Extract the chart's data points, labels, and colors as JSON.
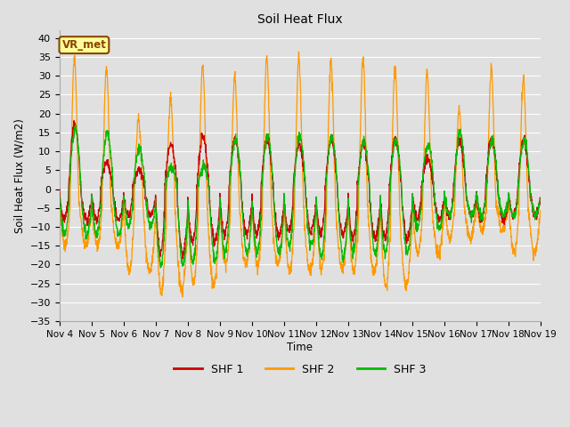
{
  "title": "Soil Heat Flux",
  "ylabel": "Soil Heat Flux (W/m2)",
  "xlabel": "Time",
  "ylim": [
    -35,
    42
  ],
  "yticks": [
    -35,
    -30,
    -25,
    -20,
    -15,
    -10,
    -5,
    0,
    5,
    10,
    15,
    20,
    25,
    30,
    35,
    40
  ],
  "colors": {
    "SHF 1": "#cc0000",
    "SHF 2": "#ff9900",
    "SHF 3": "#00bb00"
  },
  "legend_label": "VR_met",
  "legend_box_color": "#ffff99",
  "legend_box_edge": "#884400",
  "background_color": "#e0e0e0",
  "plot_bg_color": "#e0e0e0",
  "grid_color": "#ffffff",
  "x_tick_labels": [
    "Nov 4",
    "Nov 5",
    "Nov 6",
    "Nov 7",
    "Nov 8",
    "Nov 9",
    "Nov 10",
    "Nov 11",
    "Nov 12",
    "Nov 13",
    "Nov 14",
    "Nov 15",
    "Nov 16",
    "Nov 17",
    "Nov 18",
    "Nov 19"
  ],
  "n_days": 15,
  "points_per_day": 144,
  "day_amp_shf1": [
    17,
    7,
    5,
    12,
    14,
    13,
    13,
    12,
    13,
    12,
    13,
    8,
    13,
    13,
    13
  ],
  "day_amp_shf2": [
    35,
    32,
    19,
    24,
    33,
    30,
    35,
    35,
    34,
    35,
    32,
    31,
    21,
    32,
    29
  ],
  "day_amp_shf3": [
    16,
    15,
    11,
    6,
    6,
    13,
    14,
    14,
    14,
    13,
    13,
    12,
    15,
    13,
    13
  ],
  "day_night_shf1": [
    -8,
    -8,
    -7,
    -17,
    -14,
    -12,
    -12,
    -11,
    -12,
    -13,
    -13,
    -8,
    -7,
    -8,
    -7
  ],
  "day_night_shf2": [
    -15,
    -15,
    -22,
    -27,
    -25,
    -20,
    -20,
    -22,
    -21,
    -22,
    -26,
    -17,
    -13,
    -11,
    -17
  ],
  "day_night_shf3": [
    -12,
    -12,
    -10,
    -20,
    -19,
    -17,
    -17,
    -15,
    -18,
    -17,
    -17,
    -10,
    -7,
    -7,
    -7
  ],
  "figsize": [
    6.4,
    4.8
  ],
  "dpi": 100
}
